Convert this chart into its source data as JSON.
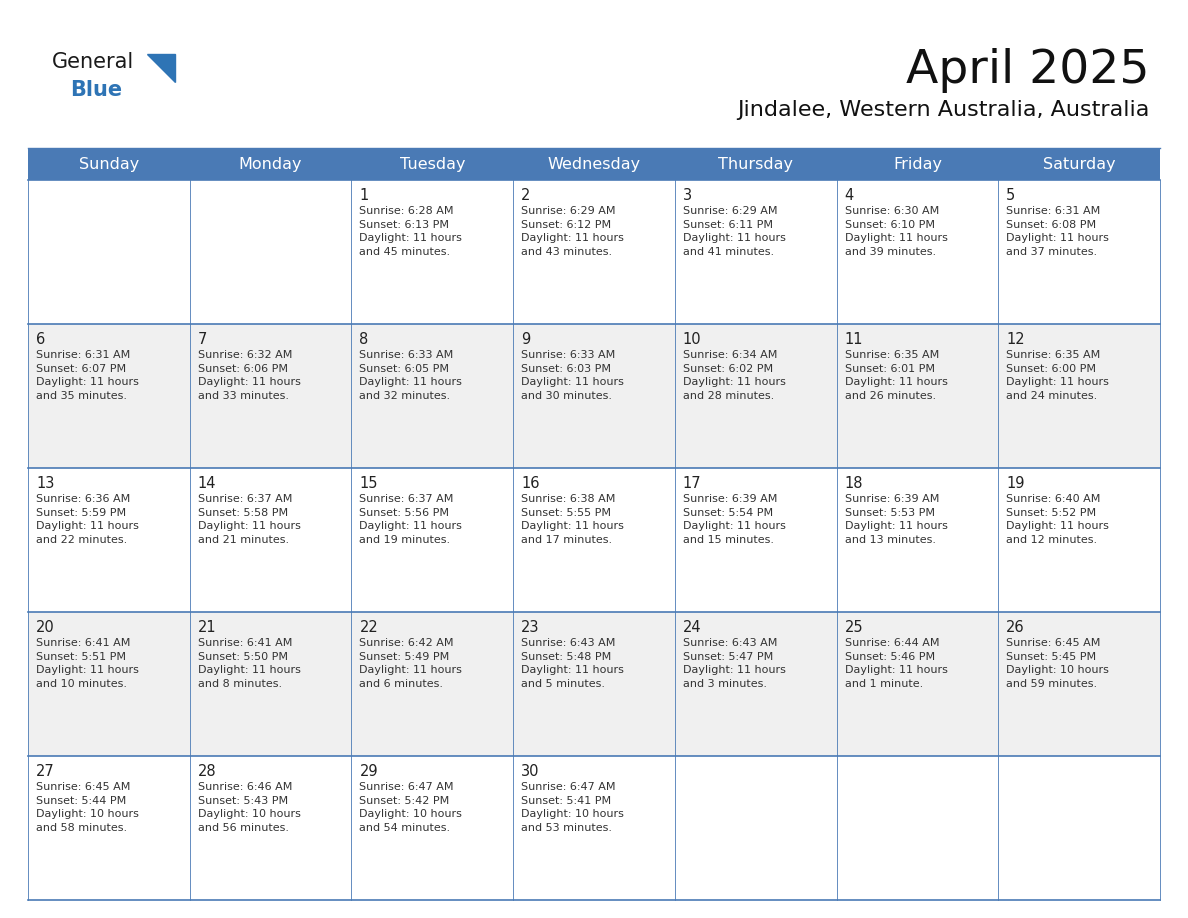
{
  "title": "April 2025",
  "subtitle": "Jindalee, Western Australia, Australia",
  "header_color": "#4a7ab5",
  "header_text_color": "#FFFFFF",
  "row_bg_white": "#FFFFFF",
  "row_bg_gray": "#F0F0F0",
  "text_color": "#333333",
  "day_number_color": "#222222",
  "days_of_week": [
    "Sunday",
    "Monday",
    "Tuesday",
    "Wednesday",
    "Thursday",
    "Friday",
    "Saturday"
  ],
  "weeks": [
    [
      {
        "day": null,
        "info": null
      },
      {
        "day": null,
        "info": null
      },
      {
        "day": 1,
        "info": "Sunrise: 6:28 AM\nSunset: 6:13 PM\nDaylight: 11 hours\nand 45 minutes."
      },
      {
        "day": 2,
        "info": "Sunrise: 6:29 AM\nSunset: 6:12 PM\nDaylight: 11 hours\nand 43 minutes."
      },
      {
        "day": 3,
        "info": "Sunrise: 6:29 AM\nSunset: 6:11 PM\nDaylight: 11 hours\nand 41 minutes."
      },
      {
        "day": 4,
        "info": "Sunrise: 6:30 AM\nSunset: 6:10 PM\nDaylight: 11 hours\nand 39 minutes."
      },
      {
        "day": 5,
        "info": "Sunrise: 6:31 AM\nSunset: 6:08 PM\nDaylight: 11 hours\nand 37 minutes."
      }
    ],
    [
      {
        "day": 6,
        "info": "Sunrise: 6:31 AM\nSunset: 6:07 PM\nDaylight: 11 hours\nand 35 minutes."
      },
      {
        "day": 7,
        "info": "Sunrise: 6:32 AM\nSunset: 6:06 PM\nDaylight: 11 hours\nand 33 minutes."
      },
      {
        "day": 8,
        "info": "Sunrise: 6:33 AM\nSunset: 6:05 PM\nDaylight: 11 hours\nand 32 minutes."
      },
      {
        "day": 9,
        "info": "Sunrise: 6:33 AM\nSunset: 6:03 PM\nDaylight: 11 hours\nand 30 minutes."
      },
      {
        "day": 10,
        "info": "Sunrise: 6:34 AM\nSunset: 6:02 PM\nDaylight: 11 hours\nand 28 minutes."
      },
      {
        "day": 11,
        "info": "Sunrise: 6:35 AM\nSunset: 6:01 PM\nDaylight: 11 hours\nand 26 minutes."
      },
      {
        "day": 12,
        "info": "Sunrise: 6:35 AM\nSunset: 6:00 PM\nDaylight: 11 hours\nand 24 minutes."
      }
    ],
    [
      {
        "day": 13,
        "info": "Sunrise: 6:36 AM\nSunset: 5:59 PM\nDaylight: 11 hours\nand 22 minutes."
      },
      {
        "day": 14,
        "info": "Sunrise: 6:37 AM\nSunset: 5:58 PM\nDaylight: 11 hours\nand 21 minutes."
      },
      {
        "day": 15,
        "info": "Sunrise: 6:37 AM\nSunset: 5:56 PM\nDaylight: 11 hours\nand 19 minutes."
      },
      {
        "day": 16,
        "info": "Sunrise: 6:38 AM\nSunset: 5:55 PM\nDaylight: 11 hours\nand 17 minutes."
      },
      {
        "day": 17,
        "info": "Sunrise: 6:39 AM\nSunset: 5:54 PM\nDaylight: 11 hours\nand 15 minutes."
      },
      {
        "day": 18,
        "info": "Sunrise: 6:39 AM\nSunset: 5:53 PM\nDaylight: 11 hours\nand 13 minutes."
      },
      {
        "day": 19,
        "info": "Sunrise: 6:40 AM\nSunset: 5:52 PM\nDaylight: 11 hours\nand 12 minutes."
      }
    ],
    [
      {
        "day": 20,
        "info": "Sunrise: 6:41 AM\nSunset: 5:51 PM\nDaylight: 11 hours\nand 10 minutes."
      },
      {
        "day": 21,
        "info": "Sunrise: 6:41 AM\nSunset: 5:50 PM\nDaylight: 11 hours\nand 8 minutes."
      },
      {
        "day": 22,
        "info": "Sunrise: 6:42 AM\nSunset: 5:49 PM\nDaylight: 11 hours\nand 6 minutes."
      },
      {
        "day": 23,
        "info": "Sunrise: 6:43 AM\nSunset: 5:48 PM\nDaylight: 11 hours\nand 5 minutes."
      },
      {
        "day": 24,
        "info": "Sunrise: 6:43 AM\nSunset: 5:47 PM\nDaylight: 11 hours\nand 3 minutes."
      },
      {
        "day": 25,
        "info": "Sunrise: 6:44 AM\nSunset: 5:46 PM\nDaylight: 11 hours\nand 1 minute."
      },
      {
        "day": 26,
        "info": "Sunrise: 6:45 AM\nSunset: 5:45 PM\nDaylight: 10 hours\nand 59 minutes."
      }
    ],
    [
      {
        "day": 27,
        "info": "Sunrise: 6:45 AM\nSunset: 5:44 PM\nDaylight: 10 hours\nand 58 minutes."
      },
      {
        "day": 28,
        "info": "Sunrise: 6:46 AM\nSunset: 5:43 PM\nDaylight: 10 hours\nand 56 minutes."
      },
      {
        "day": 29,
        "info": "Sunrise: 6:47 AM\nSunset: 5:42 PM\nDaylight: 10 hours\nand 54 minutes."
      },
      {
        "day": 30,
        "info": "Sunrise: 6:47 AM\nSunset: 5:41 PM\nDaylight: 10 hours\nand 53 minutes."
      },
      {
        "day": null,
        "info": null
      },
      {
        "day": null,
        "info": null
      },
      {
        "day": null,
        "info": null
      }
    ]
  ],
  "logo_text_general": "General",
  "logo_text_blue": "Blue",
  "header_font_size": 11.5,
  "cell_day_font_size": 10.5,
  "cell_info_font_size": 8.0,
  "title_font_size": 34,
  "subtitle_font_size": 16,
  "divider_color": "#4a7ab5",
  "border_color": "#4a7ab5"
}
